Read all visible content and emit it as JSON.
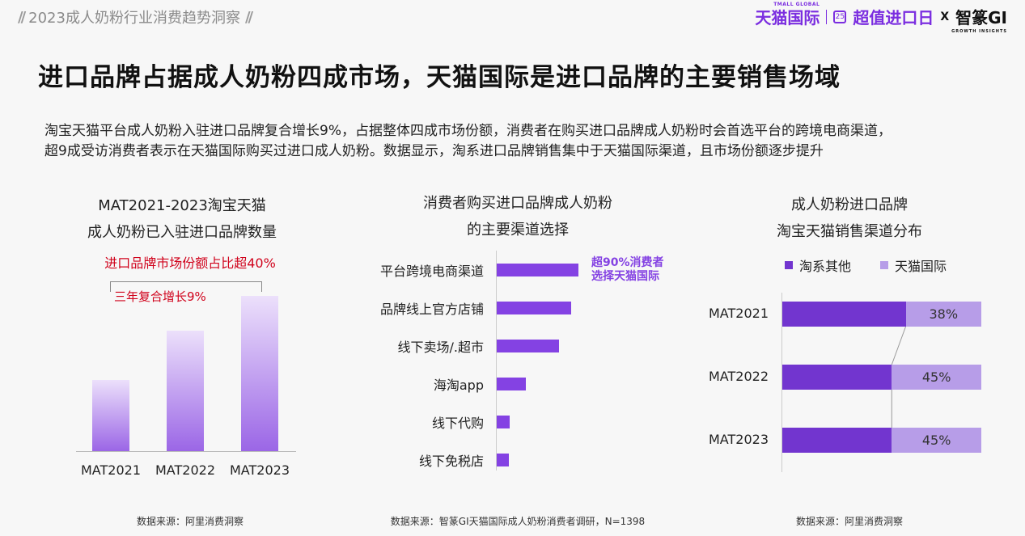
{
  "header": {
    "report_title": "2023成人奶粉行业消费趋势洞察",
    "brand_tmall": "天猫国际",
    "brand_tmall_sub": "TMALL GLOBAL",
    "brand_cal": "25",
    "brand_promo": "超值进口日",
    "brand_x": "X",
    "brand_partner": "智篆GI",
    "brand_partner_sub": "GROWTH INSIGHTS"
  },
  "title": "进口品牌占据成人奶粉四成市场，天猫国际是进口品牌的主要销售场域",
  "intro": [
    "淘宝天猫平台成人奶粉入驻进口品牌复合增长9%，占据整体四成市场份额，消费者在购买进口品牌成人奶粉时会首选平台的跨境电商渠道，",
    "超9成受访消费者表示在天猫国际购买过进口成人奶粉。数据显示，淘系进口品牌销售集中于天猫国际渠道，且市场份额逐步提升"
  ],
  "chart_data": [
    {
      "type": "bar",
      "title_lines": [
        "MAT2021-2023淘宝天猫",
        "成人奶粉已入驻进口品牌数量"
      ],
      "categories": [
        "MAT2021",
        "MAT2022",
        "MAT2023"
      ],
      "values": [
        0.45,
        0.76,
        0.98
      ],
      "annotations": [
        "进口品牌市场份额占比超40%",
        "三年复合增长9%"
      ],
      "source": "数据来源：阿里消费洞察"
    },
    {
      "type": "bar",
      "orientation": "horizontal",
      "title_lines": [
        "消费者购买进口品牌成人奶粉",
        "的主要渠道选择"
      ],
      "categories": [
        "平台跨境电商渠道",
        "品牌线上官方店铺",
        "线下卖场/.超市",
        "海淘app",
        "线下代购",
        "线下免税店"
      ],
      "values": [
        100,
        91,
        76,
        36,
        16,
        15
      ],
      "annotation_lines": [
        "超90%消费者",
        "选择天猫国际"
      ],
      "source": "数据来源：智篆GI天猫国际成人奶粉消费者调研，N=1398"
    },
    {
      "type": "bar",
      "orientation": "horizontal",
      "stacked": true,
      "title_lines": [
        "成人奶粉进口品牌",
        "淘宝天猫销售渠道分布"
      ],
      "categories": [
        "MAT2021",
        "MAT2022",
        "MAT2023"
      ],
      "series": [
        {
          "name": "淘系其他",
          "values": [
            62,
            55,
            55
          ]
        },
        {
          "name": "天猫国际",
          "values": [
            38,
            45,
            45
          ],
          "labels": [
            "38%",
            "45%",
            "45%"
          ]
        }
      ],
      "source": "数据来源：阿里消费洞察"
    }
  ],
  "colors": {
    "accent_purple": "#7b2ee0",
    "bar_purple": "#8442e3",
    "stack_dark": "#7235cf",
    "stack_light": "#b79de8",
    "annotation_red": "#d0021b"
  }
}
